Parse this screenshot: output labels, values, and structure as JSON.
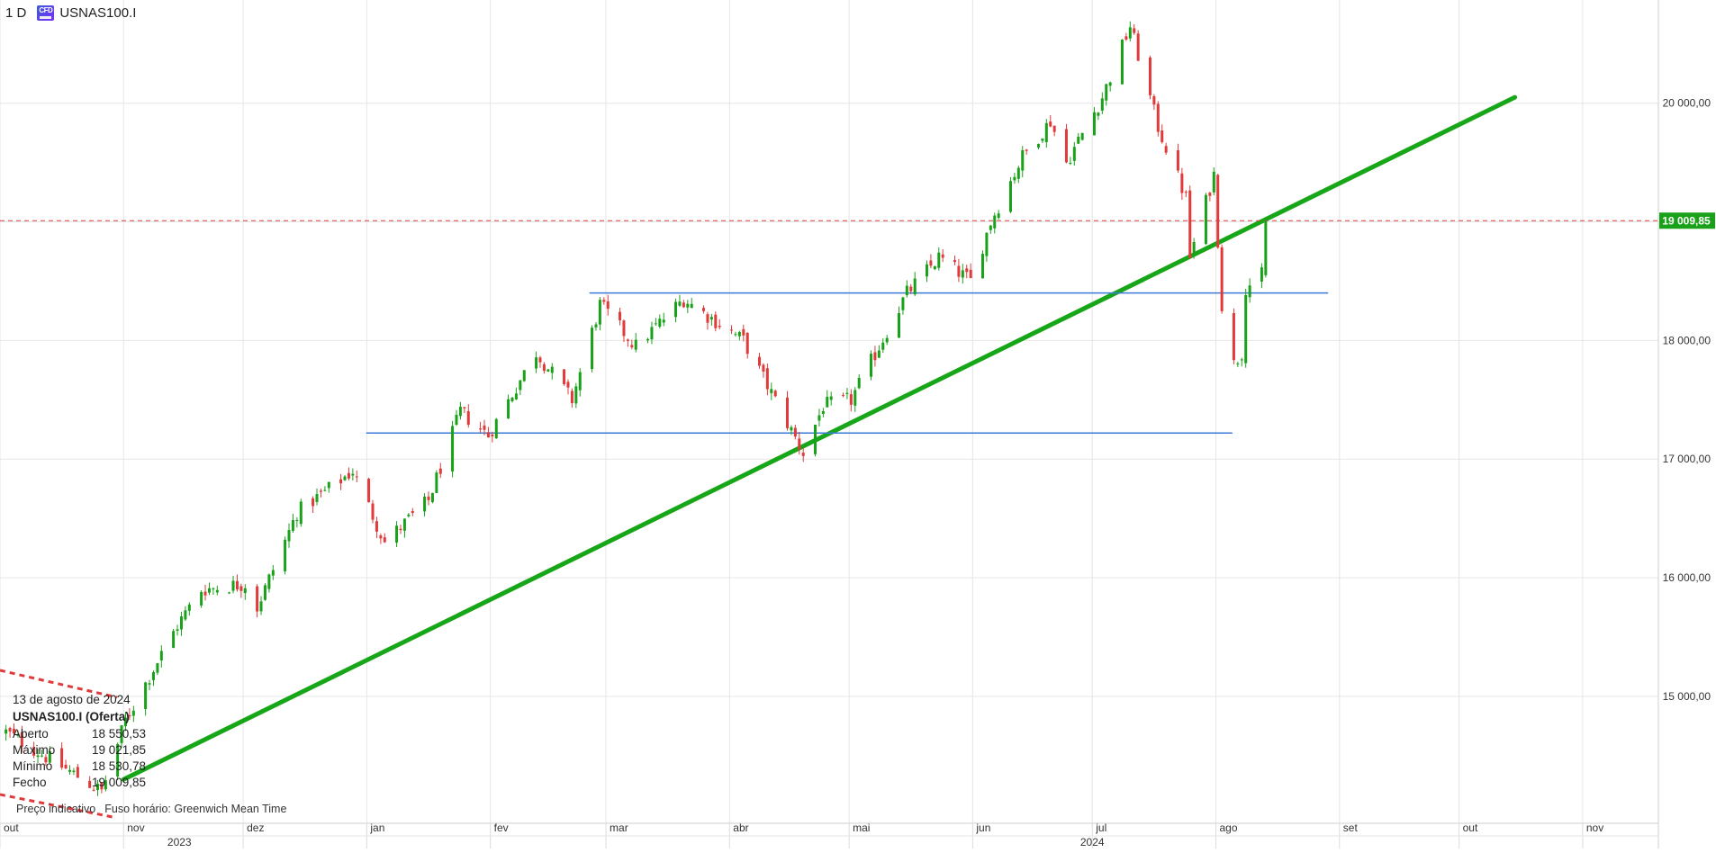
{
  "header": {
    "interval": "1 D",
    "badge_text": "CFD",
    "symbol": "USNAS100.I"
  },
  "colors": {
    "up": "#1aa11a",
    "down": "#e03a3a",
    "trendline": "#17a617",
    "horizontal": "#3a7bd5",
    "price_line": "#e03a3a",
    "price_tag_bg": "#1aa11a"
  },
  "info": {
    "date": "13 de agosto de 2024",
    "title": "USNAS100.I (Oferta)",
    "rows": [
      {
        "label": "Aberto",
        "value": "18 550,53"
      },
      {
        "label": "Máximo",
        "value": "19 021,85"
      },
      {
        "label": "Mínimo",
        "value": "18 530,78"
      },
      {
        "label": "Fecho",
        "value": "19 009,85"
      }
    ],
    "note": "Preço indicativo",
    "timezone": "Fuso horário: Greenwich Mean Time"
  },
  "chart_data": {
    "type": "candlestick",
    "y_axis": {
      "ticks": [
        {
          "value": 20000,
          "label": "20 000,00"
        },
        {
          "value": 19000,
          "label": ""
        },
        {
          "value": 18000,
          "label": "18 000,00"
        },
        {
          "value": 17000,
          "label": "17 000,00"
        },
        {
          "value": 16000,
          "label": "16 000,00"
        },
        {
          "value": 15000,
          "label": "15 000,00"
        }
      ],
      "range": [
        13930,
        20870
      ]
    },
    "x_axis": {
      "months": [
        {
          "label": "out",
          "date": "2023-10-01"
        },
        {
          "label": "nov",
          "date": "2023-11-01"
        },
        {
          "label": "dez",
          "date": "2023-12-01"
        },
        {
          "label": "jan",
          "date": "2024-01-01"
        },
        {
          "label": "fev",
          "date": "2024-02-01"
        },
        {
          "label": "mar",
          "date": "2024-03-01"
        },
        {
          "label": "abr",
          "date": "2024-04-01"
        },
        {
          "label": "mai",
          "date": "2024-05-01"
        },
        {
          "label": "jun",
          "date": "2024-06-01"
        },
        {
          "label": "jul",
          "date": "2024-07-01"
        },
        {
          "label": "ago",
          "date": "2024-08-01"
        },
        {
          "label": "set",
          "date": "2024-09-01"
        },
        {
          "label": "out",
          "date": "2024-10-01"
        },
        {
          "label": "nov",
          "date": "2024-11-01"
        }
      ],
      "years": [
        {
          "label": "2023",
          "date": "2023-11-15"
        },
        {
          "label": "2024",
          "date": "2024-07-01"
        }
      ],
      "range": [
        "2023-10-01",
        "2024-11-20"
      ]
    },
    "last_price": {
      "value": 19009.85,
      "label": "19 009,85"
    },
    "anchors": [
      {
        "date": "2023-10-02",
        "close": 14700
      },
      {
        "date": "2023-10-26",
        "close": 14200
      },
      {
        "date": "2023-11-01",
        "close": 14800
      },
      {
        "date": "2023-11-14",
        "close": 15600
      },
      {
        "date": "2023-11-20",
        "close": 15900
      },
      {
        "date": "2023-12-01",
        "close": 15950
      },
      {
        "date": "2023-12-04",
        "close": 15750
      },
      {
        "date": "2023-12-14",
        "close": 16550
      },
      {
        "date": "2023-12-28",
        "close": 16900
      },
      {
        "date": "2024-01-05",
        "close": 16300
      },
      {
        "date": "2024-01-16",
        "close": 16650
      },
      {
        "date": "2024-01-24",
        "close": 17400
      },
      {
        "date": "2024-01-31",
        "close": 17200
      },
      {
        "date": "2024-02-12",
        "close": 17900
      },
      {
        "date": "2024-02-21",
        "close": 17500
      },
      {
        "date": "2024-02-28",
        "close": 18300
      },
      {
        "date": "2024-03-08",
        "close": 17950
      },
      {
        "date": "2024-03-20",
        "close": 18350
      },
      {
        "date": "2024-04-04",
        "close": 18000
      },
      {
        "date": "2024-04-19",
        "close": 17050
      },
      {
        "date": "2024-04-24",
        "close": 17450
      },
      {
        "date": "2024-05-01",
        "close": 17500
      },
      {
        "date": "2024-05-15",
        "close": 18400
      },
      {
        "date": "2024-05-23",
        "close": 18700
      },
      {
        "date": "2024-05-31",
        "close": 18500
      },
      {
        "date": "2024-06-05",
        "close": 19000
      },
      {
        "date": "2024-06-13",
        "close": 19550
      },
      {
        "date": "2024-06-20",
        "close": 19850
      },
      {
        "date": "2024-06-24",
        "close": 19500
      },
      {
        "date": "2024-07-03",
        "close": 20050
      },
      {
        "date": "2024-07-10",
        "close": 20650
      },
      {
        "date": "2024-07-17",
        "close": 19800
      },
      {
        "date": "2024-07-24",
        "close": 19200
      },
      {
        "date": "2024-07-25",
        "close": 18700
      },
      {
        "date": "2024-07-31",
        "close": 19400
      },
      {
        "date": "2024-08-02",
        "close": 18300
      },
      {
        "date": "2024-08-05",
        "close": 17800
      },
      {
        "date": "2024-08-07",
        "close": 17900
      },
      {
        "date": "2024-08-08",
        "close": 18450
      },
      {
        "date": "2024-08-12",
        "close": 18550
      },
      {
        "date": "2024-08-13",
        "close": 19009.85
      }
    ],
    "trendlines": [
      {
        "type": "trend",
        "from": {
          "date": "2023-11-01",
          "value": 14300
        },
        "to": {
          "date": "2024-10-15",
          "value": 20050
        }
      },
      {
        "type": "horizontal",
        "from": {
          "date": "2024-01-01",
          "value": 17220
        },
        "to": {
          "date": "2024-08-05",
          "value": 17220
        }
      },
      {
        "type": "horizontal",
        "from": {
          "date": "2024-02-26",
          "value": 18400
        },
        "to": {
          "date": "2024-08-29",
          "value": 18400
        }
      }
    ]
  }
}
